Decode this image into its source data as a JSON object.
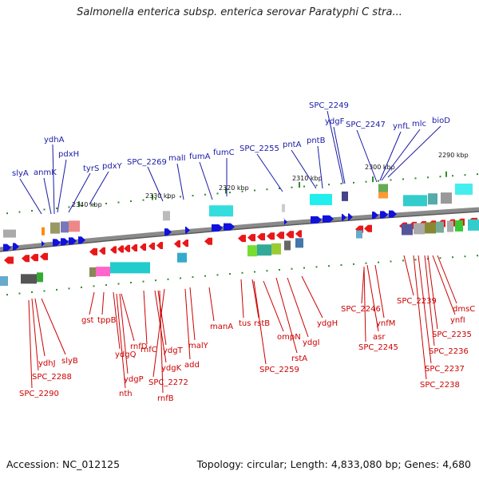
{
  "title": "Salmonella enterica subsp. enterica serovar Paratyphi C stra...",
  "footer": {
    "accession": "Accession: NC_012125",
    "summary": "Topology: circular; Length: 4,833,080 bp; Genes: 4,680"
  },
  "colors": {
    "forward": "#1111dd",
    "reverse": "#e8181a",
    "backbone": "#888888",
    "label_forward": "#1a1aa6",
    "label_reverse": "#cc0000",
    "tick": "#2e8b2e"
  },
  "diagram": {
    "scale_labels": [
      "2340 kbp",
      "2330 kbp",
      "2320 kbp",
      "2310 kbp",
      "2300 kbp",
      "2290 kbp"
    ],
    "forward_genes": [
      "slyA",
      "anmK",
      "ydhA",
      "pdxH",
      "tyrS",
      "pdxY",
      "SPC_2269",
      "malI",
      "fumA",
      "fumC",
      "SPC_2255",
      "pntA",
      "pntB",
      "SPC_2249",
      "ydgF",
      "SPC_2247",
      "ynfL",
      "mlc",
      "bioD"
    ],
    "reverse_genes": [
      "ydhJ",
      "slyB",
      "SPC_2288",
      "SPC_2290",
      "gst",
      "tppB",
      "ydgQ",
      "nth",
      "rnfD",
      "ydgP",
      "rnfC",
      "ydgT",
      "ydgK",
      "rnfB",
      "SPC_2272",
      "malY",
      "add",
      "manA",
      "tus",
      "rstB",
      "SPC_2259",
      "ompN",
      "rstA",
      "ydgI",
      "ydgH",
      "SPC_2246",
      "asr",
      "ynfM",
      "SPC_2245",
      "SPC_2239",
      "dmsC",
      "ynfI",
      "SPC_2235",
      "SPC_2236",
      "SPC_2237",
      "SPC_2238"
    ]
  }
}
